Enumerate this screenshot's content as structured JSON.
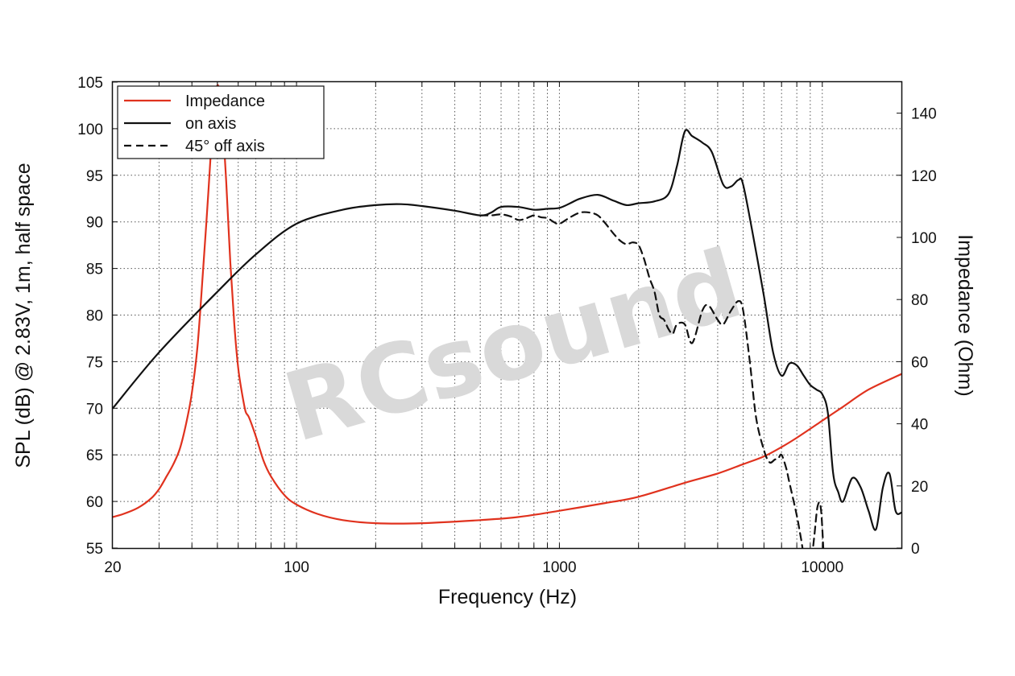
{
  "chart_data": {
    "type": "line",
    "watermark": "RCsound",
    "xlabel": "Frequency (Hz)",
    "ylabel": "SPL (dB) @ 2.83V, 1m, half space",
    "y2label": "Impedance (Ohm)",
    "x_scale": "log",
    "xlim": [
      20,
      20000
    ],
    "ylim": [
      55,
      105
    ],
    "y2lim": [
      0,
      150
    ],
    "x_ticks": [
      20,
      100,
      1000,
      10000
    ],
    "y_ticks": [
      55,
      60,
      65,
      70,
      75,
      80,
      85,
      90,
      95,
      100,
      105
    ],
    "y2_ticks": [
      0,
      20,
      40,
      60,
      80,
      100,
      120,
      140
    ],
    "grid": true,
    "legend_position": "top-left",
    "series": [
      {
        "name": "Impedance",
        "axis": "y2",
        "color": "#e0321e",
        "style": "solid",
        "x": [
          20,
          22,
          25,
          28,
          30,
          32,
          34,
          36,
          38,
          40,
          42,
          44,
          46,
          48,
          50,
          52,
          54,
          56,
          58,
          60,
          62,
          64,
          66,
          70,
          75,
          80,
          90,
          100,
          120,
          150,
          200,
          300,
          500,
          700,
          1000,
          1500,
          2000,
          3000,
          4000,
          5000,
          6000,
          7000,
          8000,
          10000,
          12000,
          15000,
          20000
        ],
        "values": [
          10,
          11,
          13,
          16,
          19,
          23,
          27,
          32,
          40,
          50,
          65,
          88,
          112,
          136,
          149,
          140,
          118,
          92,
          72,
          58,
          50,
          44,
          42,
          36,
          28,
          23,
          17,
          14,
          11,
          9,
          8,
          8,
          9,
          10,
          12,
          14.5,
          16.5,
          21,
          24,
          27,
          29.5,
          32.5,
          35.5,
          41,
          45.5,
          51,
          56
        ]
      },
      {
        "name": "on axis",
        "axis": "y",
        "color": "#111111",
        "style": "solid",
        "x": [
          20,
          30,
          50,
          70,
          100,
          150,
          200,
          250,
          300,
          400,
          500,
          550,
          600,
          700,
          800,
          900,
          1000,
          1100,
          1200,
          1400,
          1600,
          1800,
          2000,
          2300,
          2600,
          2800,
          3000,
          3200,
          3500,
          3800,
          4200,
          4500,
          4800,
          5000,
          5500,
          6000,
          6500,
          7000,
          7500,
          8000,
          8500,
          9000,
          9500,
          10000,
          10500,
          11000,
          11500,
          12000,
          13000,
          14000,
          15000,
          16000,
          17000,
          18000,
          19000,
          20000
        ],
        "values": [
          70,
          76,
          82.5,
          86.5,
          89.8,
          91.3,
          91.8,
          91.9,
          91.7,
          91.2,
          90.7,
          91.0,
          91.6,
          91.6,
          91.3,
          91.4,
          91.5,
          92.0,
          92.5,
          92.9,
          92.3,
          91.8,
          92.0,
          92.2,
          93.0,
          96.0,
          99.7,
          99.2,
          98.5,
          97.5,
          94.0,
          93.8,
          94.5,
          94.0,
          88.0,
          82.0,
          76.0,
          73.5,
          74.8,
          74.6,
          73.5,
          72.5,
          72.0,
          71.5,
          69.5,
          63.0,
          61.0,
          60.0,
          62.5,
          61.5,
          59.0,
          57.0,
          61.5,
          63.0,
          59.0,
          58.8
        ]
      },
      {
        "name": "45° off axis",
        "axis": "y",
        "color": "#111111",
        "style": "dashed",
        "x": [
          500,
          550,
          600,
          650,
          700,
          750,
          800,
          850,
          900,
          950,
          1000,
          1100,
          1200,
          1300,
          1400,
          1500,
          1600,
          1700,
          1800,
          1900,
          2000,
          2100,
          2200,
          2300,
          2400,
          2500,
          2600,
          2700,
          2800,
          3000,
          3200,
          3500,
          3700,
          4000,
          4200,
          4500,
          4800,
          5000,
          5300,
          5600,
          6000,
          6300,
          6600,
          6800,
          7000,
          7300,
          7500,
          8000,
          8300,
          8600,
          9000,
          9300,
          9600,
          9900,
          10200
        ],
        "values": [
          90.7,
          90.7,
          90.8,
          90.6,
          90.2,
          90.4,
          90.7,
          90.5,
          90.4,
          90.0,
          89.8,
          90.5,
          91.0,
          91.0,
          90.7,
          89.8,
          88.8,
          88.0,
          87.6,
          87.8,
          87.5,
          86.0,
          84.0,
          82.5,
          80.0,
          79.5,
          78.5,
          78.0,
          79.0,
          79.0,
          77.0,
          80.5,
          81.0,
          79.5,
          79.0,
          80.5,
          81.5,
          80.5,
          75.0,
          69.0,
          65.5,
          64.2,
          64.5,
          64.6,
          65.0,
          63.5,
          62.0,
          58.5,
          56.0,
          53.5,
          53.0,
          56.0,
          59.5,
          59.0,
          52.0
        ]
      }
    ]
  }
}
